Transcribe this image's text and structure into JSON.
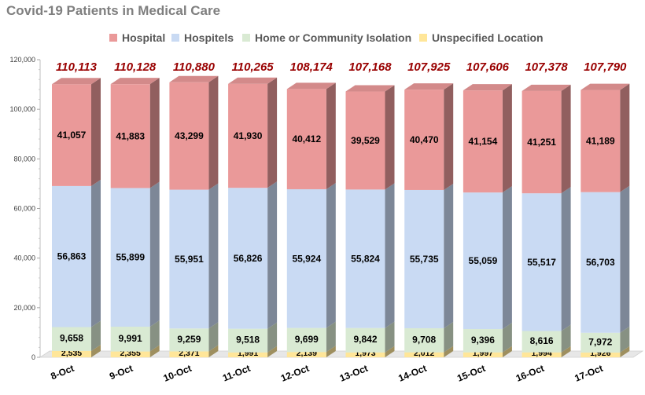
{
  "chart_data": {
    "type": "bar",
    "stacked": true,
    "title": "Covid-19 Patients in Medical Care",
    "xlabel": "",
    "ylabel": "",
    "ylim": [
      0,
      120000
    ],
    "yticks": [
      "0",
      "20,000",
      "40,000",
      "60,000",
      "80,000",
      "100,000",
      "120,000"
    ],
    "ytick_values": [
      0,
      20000,
      40000,
      60000,
      80000,
      100000,
      120000
    ],
    "categories": [
      "8-Oct",
      "9-Oct",
      "10-Oct",
      "11-Oct",
      "12-Oct",
      "13-Oct",
      "14-Oct",
      "15-Oct",
      "16-Oct",
      "17-Oct"
    ],
    "series": [
      {
        "name": "Unspecified Location",
        "color": "#ffe699",
        "values": [
          2535,
          2355,
          2371,
          1991,
          2139,
          1973,
          2012,
          1997,
          1994,
          1926
        ],
        "labels": [
          "2,535",
          "2,355",
          "2,371",
          "1,991",
          "2,139",
          "1,973",
          "2,012",
          "1,997",
          "1,994",
          "1,926"
        ]
      },
      {
        "name": "Home or Community Isolation",
        "color": "#d9ead3",
        "values": [
          9658,
          9991,
          9259,
          9518,
          9699,
          9842,
          9708,
          9396,
          8616,
          7972
        ],
        "labels": [
          "9,658",
          "9,991",
          "9,259",
          "9,518",
          "9,699",
          "9,842",
          "9,708",
          "9,396",
          "8,616",
          "7,972"
        ]
      },
      {
        "name": "Hospitels",
        "color": "#c9daf3",
        "values": [
          56863,
          55899,
          55951,
          56826,
          55924,
          55824,
          55735,
          55059,
          55517,
          56703
        ],
        "labels": [
          "56,863",
          "55,899",
          "55,951",
          "56,826",
          "55,924",
          "55,824",
          "55,735",
          "55,059",
          "55,517",
          "56,703"
        ]
      },
      {
        "name": "Hospital",
        "color": "#ea9999",
        "values": [
          41057,
          41883,
          43299,
          41930,
          40412,
          39529,
          40470,
          41154,
          41251,
          41189
        ],
        "labels": [
          "41,057",
          "41,883",
          "43,299",
          "41,930",
          "40,412",
          "39,529",
          "40,470",
          "41,154",
          "41,251",
          "41,189"
        ]
      }
    ],
    "totals": [
      "110,113",
      "110,128",
      "110,880",
      "110,265",
      "108,174",
      "107,168",
      "107,925",
      "107,606",
      "107,378",
      "107,790"
    ],
    "totals_color": "#990000",
    "legend": [
      "Hospital",
      "Hospitels",
      "Home or Community Isolation",
      "Unspecified Location"
    ],
    "legend_colors": [
      "#ea9999",
      "#c9daf3",
      "#d9ead3",
      "#ffe699"
    ],
    "legend_position": "top",
    "grid": false
  }
}
